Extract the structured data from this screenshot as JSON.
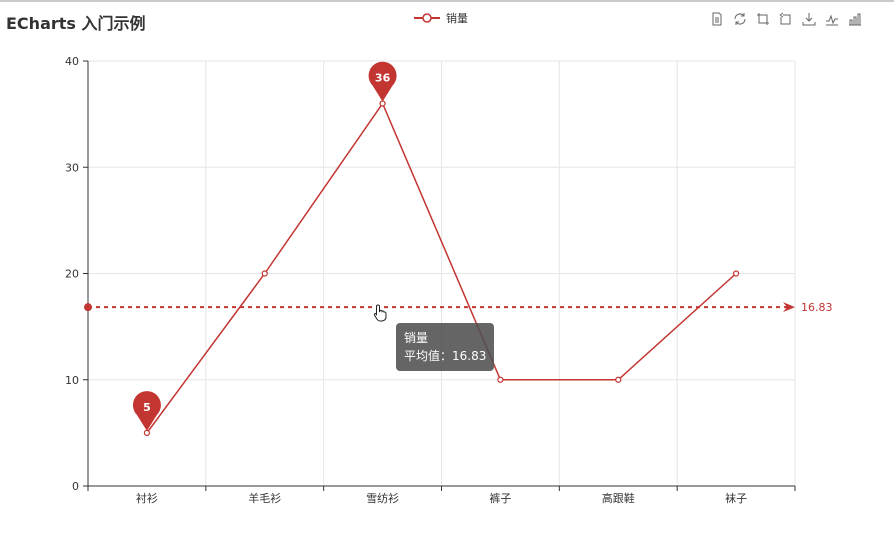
{
  "title": "ECharts 入门示例",
  "legend": {
    "label": "销量",
    "color": "#c23531"
  },
  "toolbox": [
    {
      "name": "data-view-icon"
    },
    {
      "name": "restore-icon"
    },
    {
      "name": "zoom-icon"
    },
    {
      "name": "zoom-back-icon"
    },
    {
      "name": "save-image-icon"
    },
    {
      "name": "line-chart-icon"
    },
    {
      "name": "bar-chart-icon"
    }
  ],
  "chart_data": {
    "type": "line",
    "title": "ECharts 入门示例",
    "categories": [
      "衬衫",
      "羊毛衫",
      "雪纺衫",
      "裤子",
      "高跟鞋",
      "袜子"
    ],
    "series": [
      {
        "name": "销量",
        "values": [
          5,
          20,
          36,
          10,
          10,
          20
        ],
        "color": "#c23531"
      }
    ],
    "ylim": [
      0,
      40
    ],
    "yticks": [
      0,
      10,
      20,
      30,
      40
    ],
    "grid": true,
    "legend_position": "top-center",
    "markPoints": [
      {
        "label": "5",
        "category": "衬衫",
        "value": 5
      },
      {
        "label": "36",
        "category": "雪纺衫",
        "value": 36
      }
    ],
    "markLine": {
      "value": 16.83,
      "label": "16.83"
    }
  },
  "tooltip": {
    "series": "销量",
    "line": "平均值：16.83"
  }
}
